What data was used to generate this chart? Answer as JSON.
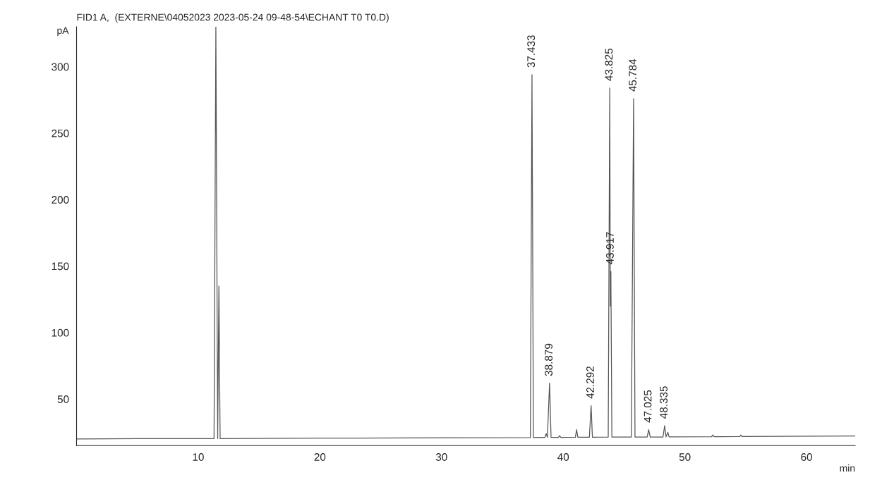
{
  "chart_data": {
    "type": "line",
    "title": "FID1 A,  (EXTERNE\\04052023 2023-05-24 09-48-54\\ECHANT T0 T0.D)",
    "xlabel": "min",
    "ylabel": "pA",
    "x": [
      0,
      5,
      11.3,
      11.45,
      11.6,
      11.7,
      11.8,
      20,
      30,
      37.3,
      37.433,
      37.55,
      38.5,
      38.6,
      38.7,
      38.879,
      39.0,
      39.6,
      39.7,
      39.8,
      41.0,
      41.1,
      41.2,
      42.15,
      42.292,
      42.4,
      43.7,
      43.825,
      43.87,
      43.917,
      44.0,
      45.6,
      45.784,
      45.9,
      46.9,
      47.025,
      47.15,
      48.2,
      48.335,
      48.45,
      48.6,
      48.7,
      52.2,
      52.3,
      52.4,
      54.5,
      54.6,
      54.7,
      64
    ],
    "series": [
      {
        "color": "#555555",
        "values": [
          20.0,
          20.2,
          20.3,
          330,
          20.3,
          135,
          20.3,
          20.6,
          20.9,
          21.1,
          294,
          21.1,
          21.2,
          24,
          21.2,
          62,
          21.2,
          21.2,
          22.5,
          21.2,
          21.3,
          27,
          21.3,
          21.3,
          45,
          21.3,
          21.4,
          284,
          120,
          146,
          21.4,
          21.5,
          276,
          21.5,
          21.5,
          27,
          21.5,
          21.5,
          30,
          21.6,
          25,
          21.6,
          21.7,
          23,
          21.7,
          21.8,
          23,
          21.8,
          22.2
        ]
      }
    ],
    "xlim": [
      0,
      64
    ],
    "ylim": [
      15,
      330
    ],
    "xticks": [
      10,
      20,
      30,
      40,
      50,
      60
    ],
    "yticks": [
      50,
      100,
      150,
      200,
      250,
      300
    ],
    "grid": false,
    "legend": false,
    "annotations": [
      {
        "text": "37.433",
        "x": 37.433,
        "y": 294
      },
      {
        "text": "38.879",
        "x": 38.879,
        "y": 62
      },
      {
        "text": "42.292",
        "x": 42.292,
        "y": 45
      },
      {
        "text": "43.825",
        "x": 43.825,
        "y": 284
      },
      {
        "text": "43.917",
        "x": 43.917,
        "y": 146
      },
      {
        "text": "45.784",
        "x": 45.784,
        "y": 276
      },
      {
        "text": "47.025",
        "x": 47.025,
        "y": 27
      },
      {
        "text": "48.335",
        "x": 48.335,
        "y": 30
      }
    ]
  }
}
